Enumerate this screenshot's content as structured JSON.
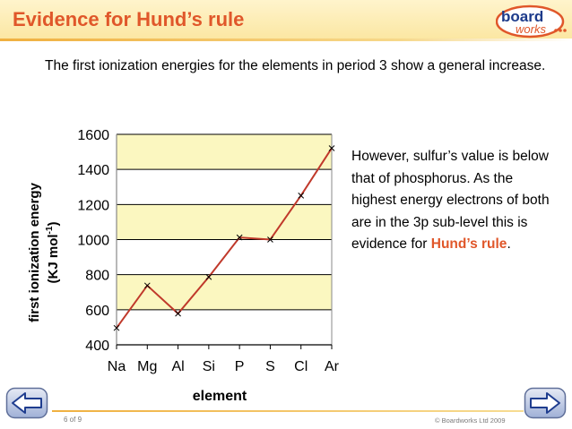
{
  "header": {
    "title": "Evidence for Hund’s rule"
  },
  "logo": {
    "line1": "board",
    "line2": "works"
  },
  "intro": "The first ionization energies for the elements in period 3 show a general increase.",
  "explanation": {
    "text_before": "However, sulfur’s value is below that of phosphorus. As the highest energy electrons of both are in the 3p sub-level this is evidence for ",
    "highlight": "Hund’s rule",
    "text_after": "."
  },
  "chart_data": {
    "type": "line",
    "categories": [
      "Na",
      "Mg",
      "Al",
      "Si",
      "P",
      "S",
      "Cl",
      "Ar"
    ],
    "series": [
      {
        "values": [
          496,
          738,
          578,
          787,
          1012,
          1000,
          1251,
          1521
        ]
      }
    ],
    "xlabel": "element",
    "ylabel": "first ionization energy",
    "ylabel_unit": "(KJ mol",
    "ylabel_unit_sup": "-1",
    "ylabel_unit_close": ")",
    "ylim": [
      400,
      1600
    ],
    "yticks": [
      1600,
      1400,
      1200,
      1000,
      800,
      600,
      400
    ],
    "band_color": "#fbf7c0",
    "line_color": "#c0392b"
  },
  "footer": {
    "page": "6 of 9",
    "copyright": "© Boardworks Ltd 2009"
  }
}
